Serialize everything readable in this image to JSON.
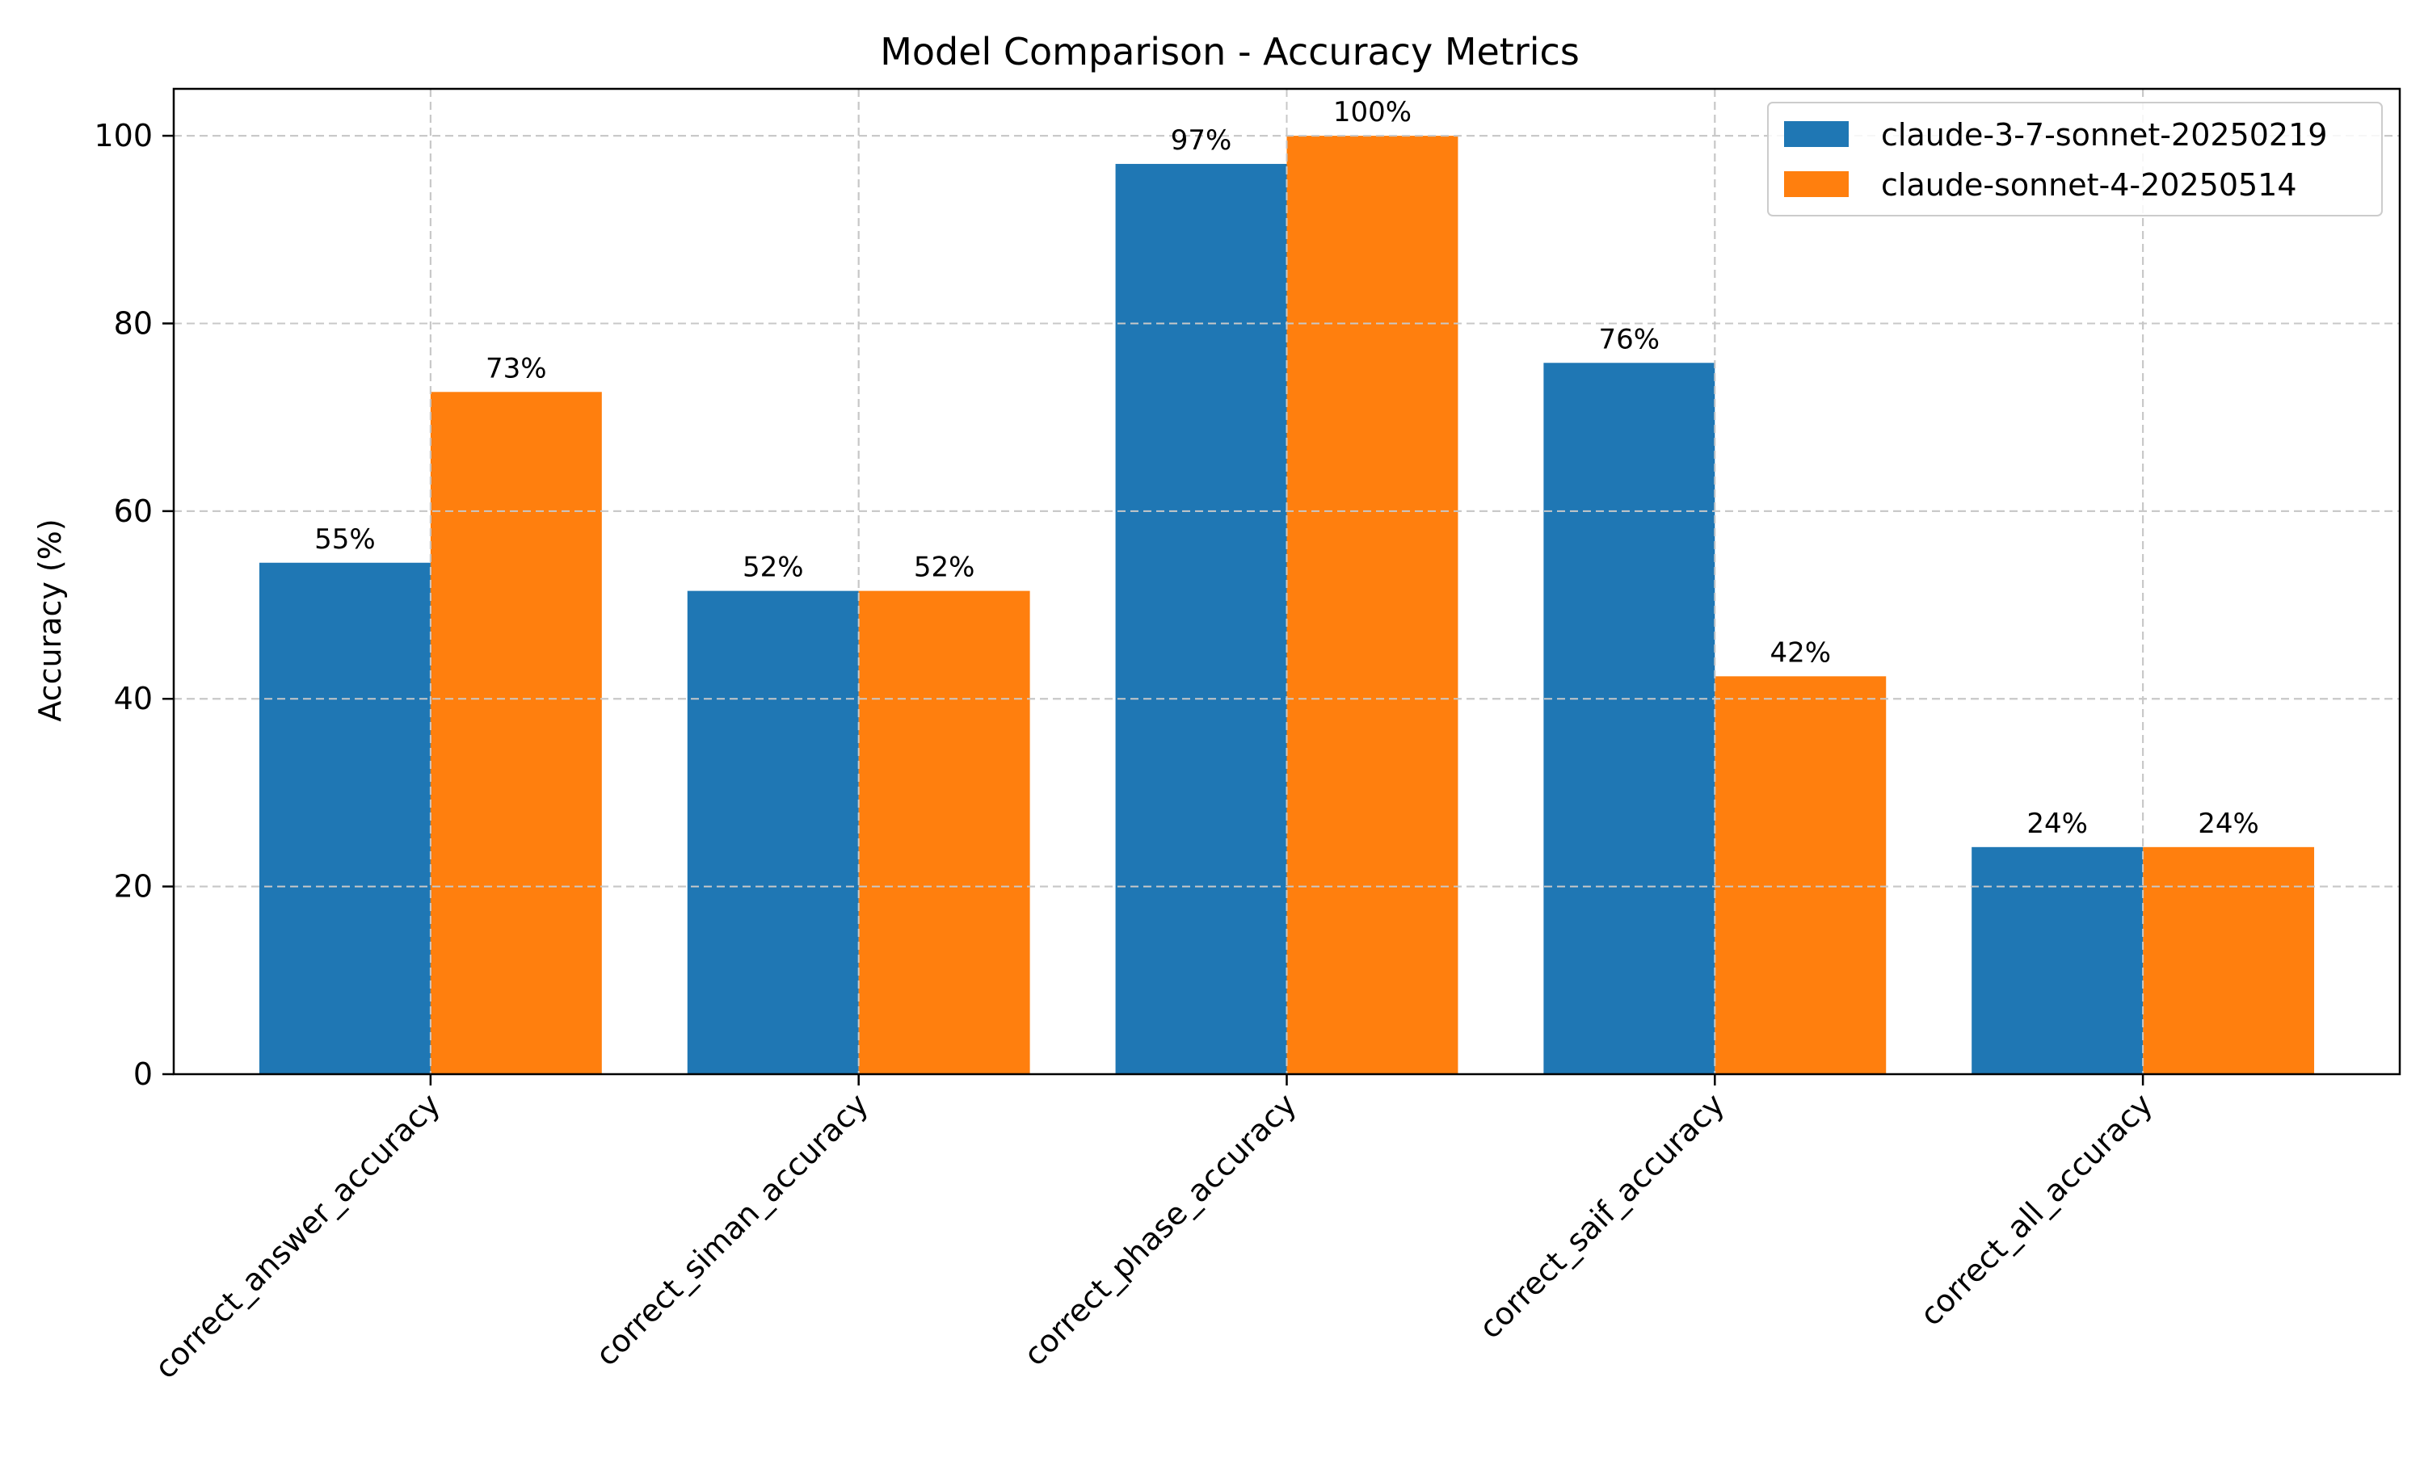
{
  "chart_data": {
    "type": "bar",
    "title": "Model Comparison - Accuracy Metrics",
    "xlabel": "",
    "ylabel": "Accuracy (%)",
    "ylim": [
      0,
      105
    ],
    "yticks": [
      0,
      20,
      40,
      60,
      80,
      100
    ],
    "grid": true,
    "legend_position": "top-right",
    "categories": [
      "correct_answer_accuracy",
      "correct_siman_accuracy",
      "correct_phase_accuracy",
      "correct_saif_accuracy",
      "correct_all_accuracy"
    ],
    "series": [
      {
        "name": "claude-3-7-sonnet-20250219",
        "color": "#1f77b4",
        "values": [
          54.5,
          51.5,
          97.0,
          75.8,
          24.2
        ],
        "labels": [
          "55%",
          "52%",
          "97%",
          "76%",
          "24%"
        ]
      },
      {
        "name": "claude-sonnet-4-20250514",
        "color": "#ff7f0e",
        "values": [
          72.7,
          51.5,
          100.0,
          42.4,
          24.2
        ],
        "labels": [
          "73%",
          "52%",
          "100%",
          "42%",
          "24%"
        ]
      }
    ]
  }
}
